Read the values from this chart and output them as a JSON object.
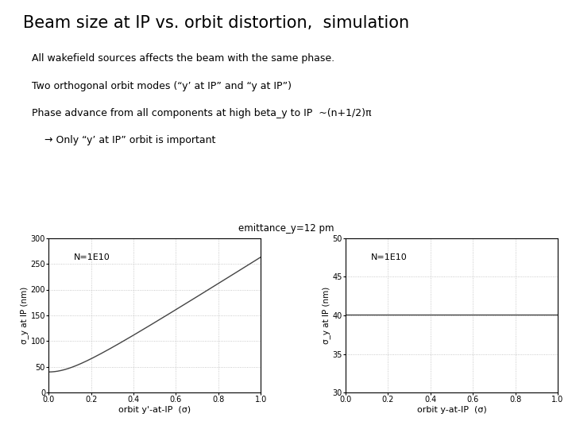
{
  "title": "Beam size at IP vs. orbit distortion,  simulation",
  "subtitle_lines": [
    "All wakefield sources affects the beam with the same phase.",
    "Two orthogonal orbit modes (“y’ at IP” and “y at IP”)",
    "Phase advance from all components at high beta_y to IP  ~(n+1/2)π",
    "    → Only “y’ at IP” orbit is important"
  ],
  "shared_title": "emittance_y=12 pm",
  "plot1": {
    "xlabel": "orbit y'-at-IP  (σ)",
    "ylabel": "σ_y at IP (nm)",
    "xlim": [
      0,
      1.0
    ],
    "ylim": [
      0,
      300
    ],
    "yticks": [
      0,
      50,
      100,
      150,
      200,
      250,
      300
    ],
    "xticks": [
      0,
      0.2,
      0.4,
      0.6,
      0.8,
      1.0
    ],
    "label": "N=1E10",
    "base_value": 40.0,
    "scale": 260.0
  },
  "plot2": {
    "xlabel": "orbit y-at-IP  (σ)",
    "ylabel": "σ_y at IP (nm)",
    "xlim": [
      0,
      1.0
    ],
    "ylim": [
      30,
      50
    ],
    "yticks": [
      30,
      35,
      40,
      45,
      50
    ],
    "xticks": [
      0,
      0.2,
      0.4,
      0.6,
      0.8,
      1.0
    ],
    "label": "N=1E10",
    "flat_value": 40.1
  },
  "bg_color": "#ffffff",
  "plot_bg_color": "#ffffff",
  "line_color": "#444444",
  "grid_color": "#bbbbbb",
  "grid_style": ":"
}
